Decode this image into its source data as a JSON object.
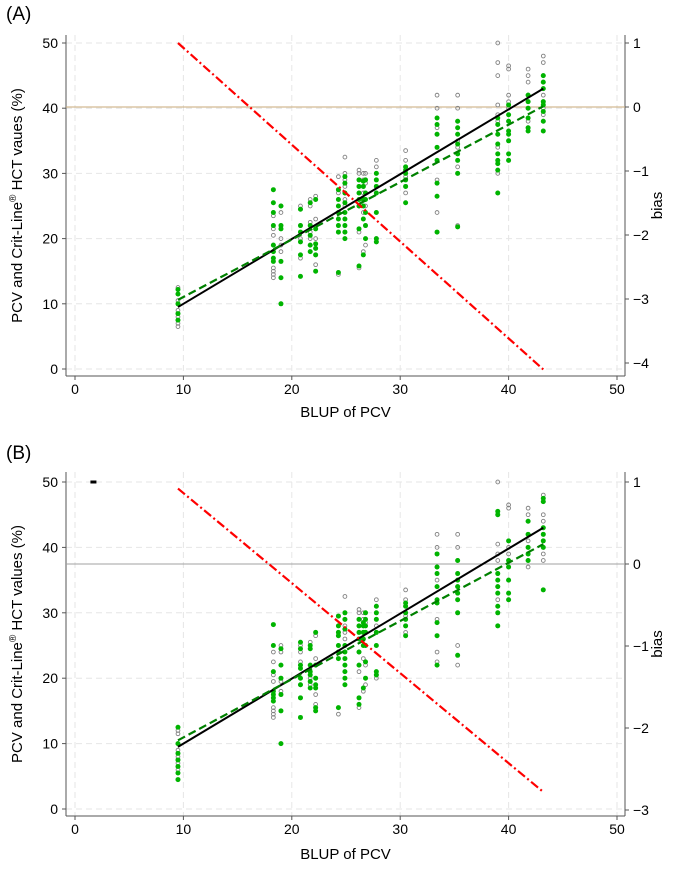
{
  "chart_data": [
    {
      "panel_label": "(A)",
      "type": "scatter",
      "xlabel": "BLUP of PCV",
      "ylabel": "PCV and Crit-Line",
      "ylabel_sup": "®",
      "ylabel_tail": " HCT vaues (%)",
      "y2label": "bias",
      "xlim": [
        0,
        50
      ],
      "ylim": [
        0,
        50
      ],
      "y2lim": [
        -4.1,
        1.1
      ],
      "xticks": [
        "0",
        "10",
        "20",
        "30",
        "40",
        "50"
      ],
      "yticks": [
        "0",
        "10",
        "20",
        "30",
        "40",
        "50"
      ],
      "y2ticks": [
        "1",
        "0",
        "−1",
        "−2",
        "−3",
        "−4"
      ],
      "y2tick_values": [
        1,
        0,
        -1,
        -2,
        -3,
        -4
      ],
      "grid": true,
      "colors": {
        "open_points": "#808080",
        "filled_points": "#00b400",
        "identity_line": "#000000",
        "fit_line": "#008000",
        "bias_line": "#ff0000",
        "zero_bias_line": "#c8aa78"
      },
      "zero_bias": 0,
      "identity_line": {
        "x": [
          9.5,
          43.2
        ],
        "y": [
          9.5,
          43
        ]
      },
      "fit_line": {
        "x": [
          9.5,
          43.2
        ],
        "y": [
          10.6,
          40.3
        ]
      },
      "bias_line": {
        "x": [
          9.5,
          43.2
        ],
        "bias": [
          1.0,
          -4.1
        ]
      },
      "columns": [
        {
          "x": 9.5,
          "open": [
            6.5,
            7,
            8,
            9,
            10.5,
            11.5,
            12.5
          ],
          "filled": [
            7.5,
            8.5,
            10,
            11.5,
            12.2
          ]
        },
        {
          "x": 18.3,
          "open": [
            14,
            14.5,
            15,
            15.5,
            18,
            19,
            20.5,
            21.5,
            23.5
          ],
          "filled": [
            16.5,
            17,
            18,
            19,
            22,
            24,
            25.5,
            27.5
          ]
        },
        {
          "x": 19,
          "open": [
            18,
            19,
            20,
            22,
            24,
            25
          ],
          "filled": [
            10,
            14,
            16.5,
            21.5,
            22,
            25
          ]
        },
        {
          "x": 20.8,
          "open": [
            17,
            20,
            22,
            24.5,
            25
          ],
          "filled": [
            14.2,
            17.5,
            19.5,
            21,
            22,
            24.5
          ]
        },
        {
          "x": 21.7,
          "open": [
            19,
            20,
            21,
            22.5,
            25,
            26
          ],
          "filled": [
            18,
            19,
            20.5,
            22,
            25.5
          ]
        },
        {
          "x": 22.2,
          "open": [
            16,
            17.5,
            18.5,
            20,
            23,
            26.5
          ],
          "filled": [
            15,
            17.5,
            18.5,
            19.2,
            21.5,
            26
          ]
        },
        {
          "x": 24.3,
          "open": [
            14.5,
            27,
            29.5
          ],
          "filled": [
            14.8,
            21,
            22,
            23,
            24,
            25,
            26,
            27.5
          ]
        },
        {
          "x": 24.9,
          "open": [
            25,
            26,
            27,
            28,
            29,
            30,
            32.5
          ],
          "filled": [
            20,
            21,
            22,
            23,
            24,
            25.5,
            27,
            28.5,
            29.5
          ]
        },
        {
          "x": 26.2,
          "open": [
            15.5,
            21,
            25,
            28,
            29,
            30,
            30.5
          ],
          "filled": [
            15.8,
            21.5,
            25,
            26,
            27,
            28,
            29
          ]
        },
        {
          "x": 26.6,
          "open": [
            18,
            24,
            26,
            27,
            28,
            29,
            30
          ],
          "filled": [
            17.5,
            23,
            25,
            26,
            28,
            28.8
          ]
        },
        {
          "x": 26.8,
          "open": [
            19,
            22,
            25,
            27,
            28.5,
            30
          ],
          "filled": [
            20,
            22,
            24,
            26,
            27,
            29
          ]
        },
        {
          "x": 27.8,
          "open": [
            19.5,
            20,
            27,
            28,
            30,
            31,
            32
          ],
          "filled": [
            19.5,
            20,
            24,
            27,
            28,
            29,
            30
          ]
        },
        {
          "x": 30.5,
          "open": [
            27,
            28,
            29.5,
            31,
            32,
            33.5
          ],
          "filled": [
            25.5,
            28,
            29,
            30,
            30.5,
            31
          ]
        },
        {
          "x": 33.4,
          "open": [
            24,
            29,
            36,
            37,
            40,
            42
          ],
          "filled": [
            21,
            26.5,
            28.5,
            32,
            34,
            36,
            37.5,
            38.5
          ]
        },
        {
          "x": 35.3,
          "open": [
            22,
            30,
            31,
            33,
            34,
            35,
            38,
            40,
            42
          ],
          "filled": [
            21.8,
            30,
            32,
            33,
            34.5,
            36,
            37,
            38
          ]
        },
        {
          "x": 39,
          "open": [
            30,
            32,
            34,
            36,
            38,
            39,
            40.5,
            45,
            47,
            50
          ],
          "filled": [
            27,
            30.5,
            31.5,
            32,
            33,
            34.5,
            36,
            37.5,
            38.5
          ]
        },
        {
          "x": 40,
          "open": [
            32,
            35,
            38,
            40,
            41,
            42,
            46,
            46.5
          ],
          "filled": [
            32,
            33,
            35,
            36,
            36.5,
            38,
            39,
            40.5
          ]
        },
        {
          "x": 41.8,
          "open": [
            37,
            38,
            40,
            41,
            42,
            44,
            45,
            46
          ],
          "filled": [
            36.5,
            37,
            38.5,
            40,
            41,
            42
          ]
        },
        {
          "x": 43.2,
          "open": [
            38,
            39,
            40,
            41,
            42,
            43,
            44,
            45,
            47,
            48
          ],
          "filled": [
            36.5,
            38,
            39.5,
            40.5,
            41,
            43,
            44,
            45
          ]
        }
      ],
      "marker": null
    },
    {
      "panel_label": "(B)",
      "type": "scatter",
      "xlabel": "BLUP of PCV",
      "ylabel": "PCV and Crit-Line",
      "ylabel_sup": "®",
      "ylabel_tail": " HCT values (%)",
      "y2label": "bias",
      "xlim": [
        0,
        50
      ],
      "ylim": [
        0,
        50
      ],
      "y2lim": [
        -3.03,
        1.03
      ],
      "xticks": [
        "0",
        "10",
        "20",
        "30",
        "40",
        "50"
      ],
      "yticks": [
        "0",
        "10",
        "20",
        "30",
        "40",
        "50"
      ],
      "y2ticks": [
        "1",
        "0",
        "−1",
        "−2",
        "−3"
      ],
      "y2tick_values": [
        1,
        0,
        -1,
        -2,
        -3
      ],
      "grid": true,
      "colors": {
        "open_points": "#808080",
        "filled_points": "#00b400",
        "identity_line": "#000000",
        "fit_line": "#008000",
        "bias_line": "#ff0000",
        "zero_bias_line": "#a0a0a0"
      },
      "zero_bias": 0,
      "identity_line": {
        "x": [
          9.5,
          43.2
        ],
        "y": [
          9.5,
          43
        ]
      },
      "fit_line": {
        "x": [
          9.5,
          43.2
        ],
        "y": [
          10.5,
          40.5
        ]
      },
      "bias_line": {
        "x": [
          9.5,
          43.2
        ],
        "bias": [
          0.92,
          -2.78
        ]
      },
      "columns": [
        {
          "x": 9.5,
          "open": [
            6,
            7,
            8,
            9,
            10,
            11.5,
            12
          ],
          "filled": [
            4.5,
            5.5,
            6.5,
            7.5,
            8.5,
            10,
            12.5
          ]
        },
        {
          "x": 18.3,
          "open": [
            14,
            14.5,
            15,
            15.5,
            18,
            19.5,
            20.5,
            22.5,
            24
          ],
          "filled": [
            16.5,
            17,
            17.5,
            18,
            21,
            25,
            28.2
          ]
        },
        {
          "x": 19,
          "open": [
            18,
            19.5,
            20,
            24,
            25
          ],
          "filled": [
            10,
            15,
            17.5,
            20,
            22,
            24.5
          ]
        },
        {
          "x": 20.8,
          "open": [
            17,
            19,
            22.5,
            24,
            25
          ],
          "filled": [
            14,
            17,
            19,
            20,
            21.5,
            22,
            24.5,
            25.5
          ]
        },
        {
          "x": 21.7,
          "open": [
            19,
            20,
            22,
            24.5,
            25.5
          ],
          "filled": [
            18.5,
            19.5,
            20.5,
            21,
            22,
            24.5,
            25
          ]
        },
        {
          "x": 22.2,
          "open": [
            16,
            17.5,
            18.5,
            20,
            23,
            26.5
          ],
          "filled": [
            15,
            15.5,
            18.5,
            19,
            20,
            22,
            27
          ]
        },
        {
          "x": 24.3,
          "open": [
            14.5,
            27,
            29.5
          ],
          "filled": [
            15.5,
            23,
            24,
            25,
            26.5,
            27,
            28,
            29.5
          ]
        },
        {
          "x": 24.9,
          "open": [
            25,
            26,
            27,
            28,
            29,
            30,
            32.5
          ],
          "filled": [
            19,
            20,
            21,
            22,
            23,
            24,
            25,
            27.5,
            29,
            30
          ]
        },
        {
          "x": 26.2,
          "open": [
            15.5,
            21,
            24,
            28,
            29,
            30,
            30.5
          ],
          "filled": [
            16,
            17,
            22,
            24,
            26,
            27,
            28,
            29
          ]
        },
        {
          "x": 26.6,
          "open": [
            18,
            23,
            26,
            27,
            28,
            29,
            30
          ],
          "filled": [
            18.5,
            25,
            26,
            27,
            28,
            28.5
          ]
        },
        {
          "x": 26.8,
          "open": [
            19,
            22,
            25,
            27,
            28.5,
            30
          ],
          "filled": [
            20,
            22.5,
            25,
            27,
            28,
            29,
            30
          ]
        },
        {
          "x": 27.8,
          "open": [
            20,
            20.5,
            27,
            28,
            30,
            31,
            32
          ],
          "filled": [
            20.5,
            21,
            25,
            27,
            29,
            30,
            31
          ]
        },
        {
          "x": 30.5,
          "open": [
            27,
            28,
            29.5,
            31,
            32,
            33.5
          ],
          "filled": [
            26.5,
            28,
            29,
            30,
            31,
            31.5
          ]
        },
        {
          "x": 33.4,
          "open": [
            22.5,
            24,
            29,
            35,
            37,
            40,
            42
          ],
          "filled": [
            22,
            26.5,
            28.5,
            31.5,
            32,
            34,
            36,
            37,
            39
          ]
        },
        {
          "x": 35.3,
          "open": [
            22,
            25,
            30,
            33,
            34,
            35,
            38,
            40,
            42
          ],
          "filled": [
            23.5,
            30,
            32,
            33,
            34,
            35,
            36,
            38
          ]
        },
        {
          "x": 39,
          "open": [
            30,
            32,
            34,
            36,
            38,
            39,
            40.5,
            45,
            50
          ],
          "filled": [
            28,
            30,
            31,
            33,
            34,
            35,
            36,
            45,
            45.5
          ]
        },
        {
          "x": 40,
          "open": [
            32,
            35,
            37,
            38,
            39,
            40,
            46,
            46.5
          ],
          "filled": [
            32,
            33,
            35,
            37,
            38,
            41
          ]
        },
        {
          "x": 41.8,
          "open": [
            37,
            38,
            40,
            41,
            42,
            44,
            45,
            46
          ],
          "filled": [
            38,
            39,
            40,
            42,
            44
          ]
        },
        {
          "x": 43.2,
          "open": [
            38,
            39,
            40,
            41,
            42,
            43,
            44,
            45,
            47,
            48
          ],
          "filled": [
            33.5,
            40,
            41,
            42,
            43,
            47,
            47.5
          ]
        }
      ],
      "marker": {
        "x": 1.7,
        "y": 50
      }
    }
  ]
}
